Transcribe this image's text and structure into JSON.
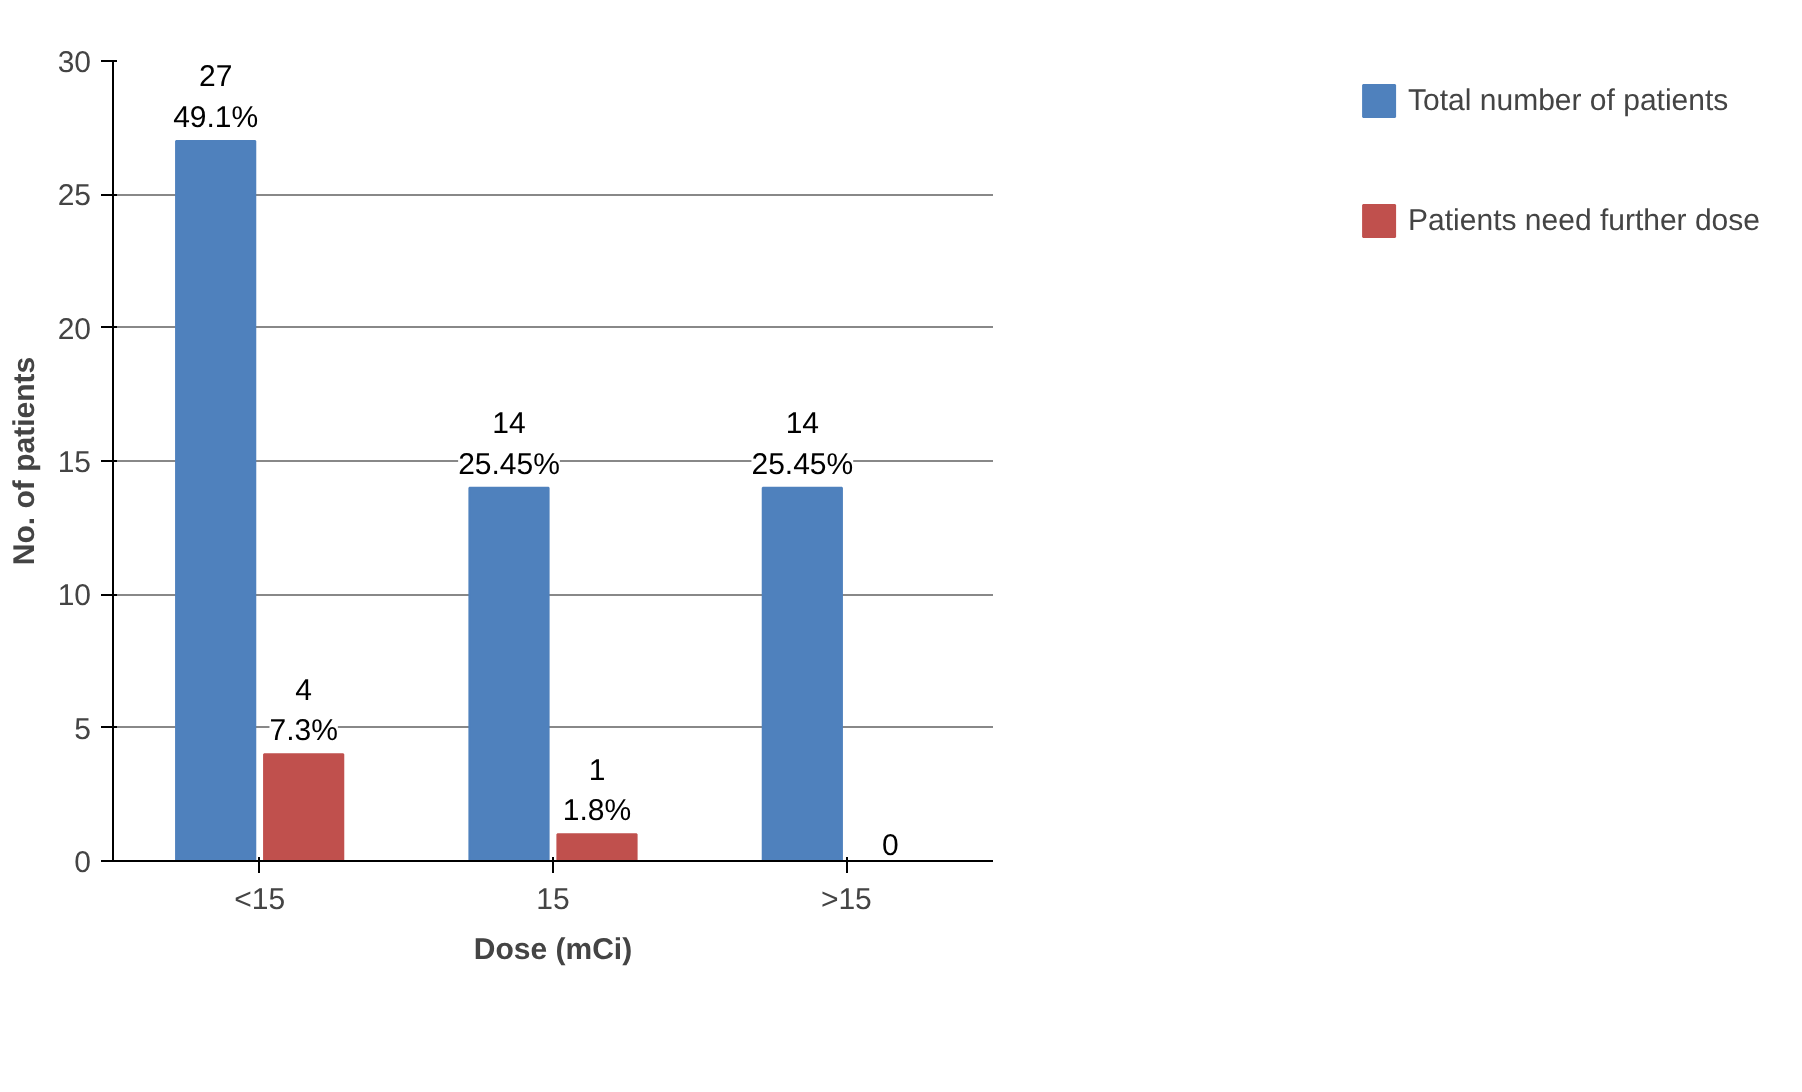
{
  "chart_data": {
    "type": "bar",
    "xlabel": "Dose (mCi)",
    "ylabel": "No. of patients",
    "categories": [
      "<15",
      "15",
      ">15"
    ],
    "series": [
      {
        "name": "Total number of patients",
        "color": "#4f81bd",
        "values": [
          27,
          14,
          14
        ],
        "value_labels": [
          "27\n49.1%",
          "14\n25.45%",
          "14\n25.45%"
        ]
      },
      {
        "name": "Patients need further dose",
        "color": "#c0504d",
        "values": [
          4,
          1,
          0
        ],
        "value_labels": [
          "4\n7.3%",
          "1\n1.8%",
          "0"
        ]
      }
    ],
    "ylim": [
      0,
      30
    ],
    "yticks": [
      0,
      5,
      10,
      15,
      20,
      25,
      30
    ],
    "grid": "y",
    "legend": "right"
  }
}
